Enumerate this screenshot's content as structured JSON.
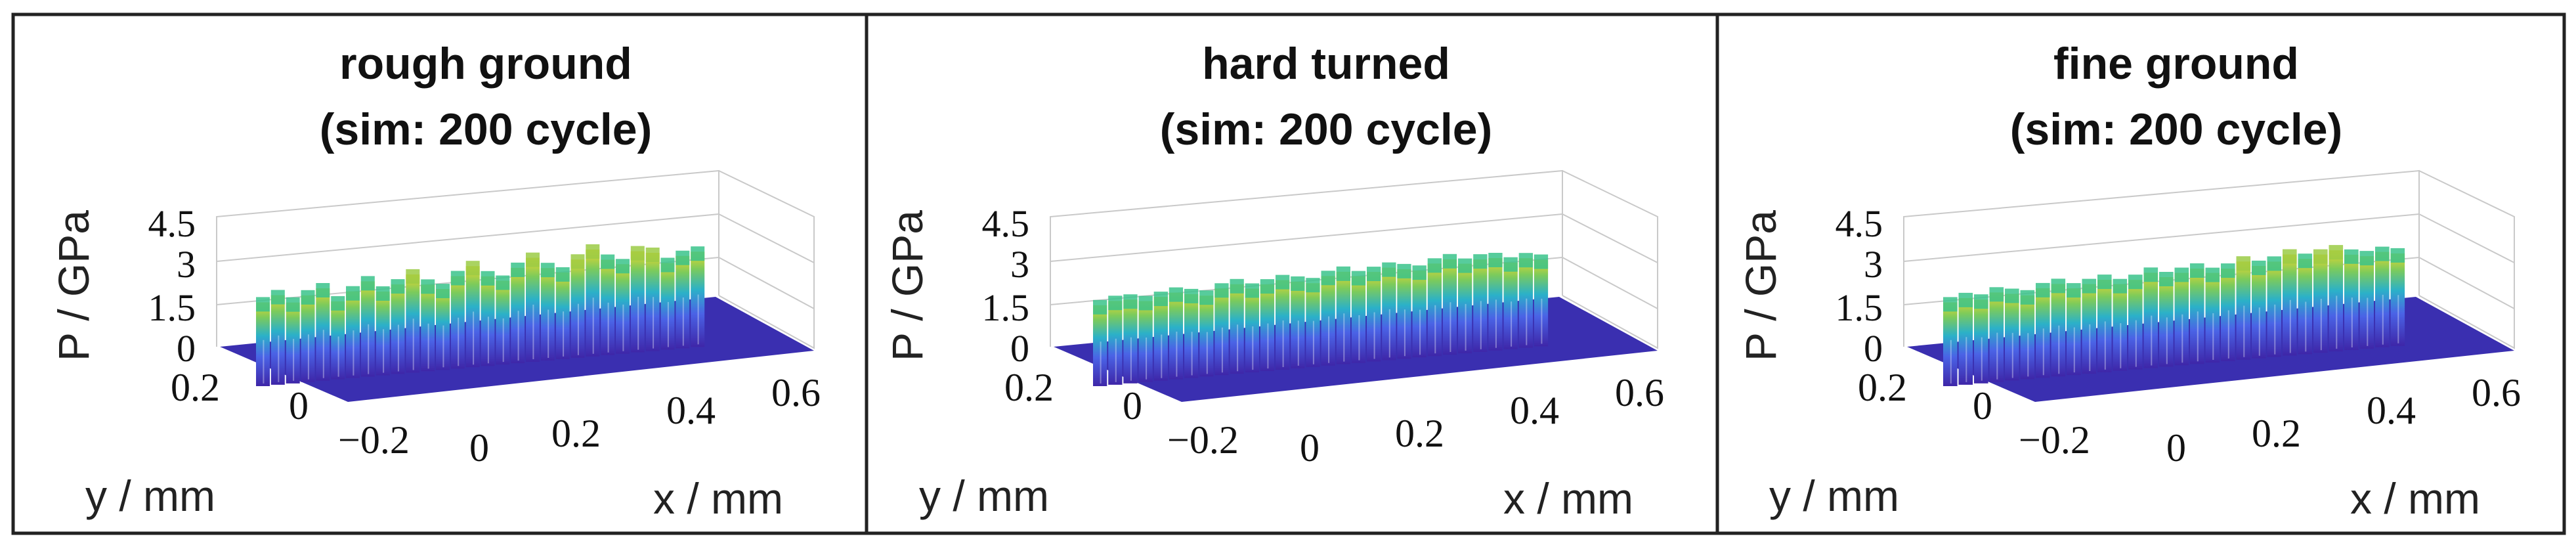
{
  "chart_data": [
    {
      "type": "surface3d",
      "title_line1": "rough ground",
      "title_line2": "(sim: 200 cycle)",
      "zlabel": "P / GPa",
      "ylabel": "y / mm",
      "xlabel": "x / mm",
      "zticks": [
        "0",
        "1.5",
        "3",
        "4.5"
      ],
      "yticks": [
        "0.2",
        "0",
        "−0.2"
      ],
      "xticks": [
        "0",
        "0.2",
        "0.4",
        "0.6"
      ],
      "zlim": [
        0,
        4.5
      ],
      "ridge_heights": [
        2.9,
        3.1,
        2.8,
        3.0,
        3.2,
        2.7,
        3.0,
        3.3,
        2.9,
        3.1,
        3.4,
        3.0,
        2.8,
        3.2,
        3.5,
        3.1,
        2.9,
        3.3,
        3.6,
        3.2,
        3.0,
        3.4,
        3.7,
        3.3,
        3.1,
        3.5,
        3.4,
        3.0,
        3.2,
        3.3
      ]
    },
    {
      "type": "surface3d",
      "title_line1": "hard turned",
      "title_line2": "(sim: 200 cycle)",
      "zlabel": "P / GPa",
      "ylabel": "y / mm",
      "xlabel": "x / mm",
      "zticks": [
        "0",
        "1.5",
        "3",
        "4.5"
      ],
      "yticks": [
        "0.2",
        "0",
        "−0.2"
      ],
      "xticks": [
        "0",
        "0.2",
        "0.4",
        "0.6"
      ],
      "zlim": [
        0,
        4.5
      ],
      "ridge_heights": [
        2.8,
        2.9,
        2.9,
        2.8,
        2.9,
        3.0,
        2.9,
        2.8,
        3.0,
        3.1,
        2.9,
        3.0,
        3.1,
        3.0,
        2.9,
        3.1,
        3.2,
        3.0,
        3.1,
        3.2,
        3.1,
        3.0,
        3.2,
        3.3,
        3.1,
        3.2,
        3.2,
        3.0,
        3.1,
        3.0
      ]
    },
    {
      "type": "surface3d",
      "title_line1": "fine ground",
      "title_line2": "(sim: 200 cycle)",
      "zlabel": "P / GPa",
      "ylabel": "y / mm",
      "xlabel": "x / mm",
      "zticks": [
        "0",
        "1.5",
        "3",
        "4.5"
      ],
      "yticks": [
        "0.2",
        "0",
        "−0.2"
      ],
      "xticks": [
        "0",
        "0.2",
        "0.4",
        "0.6"
      ],
      "zlim": [
        0,
        4.5
      ],
      "ridge_heights": [
        2.9,
        3.0,
        2.9,
        3.1,
        3.0,
        2.9,
        3.1,
        3.2,
        3.0,
        3.1,
        3.2,
        3.0,
        3.1,
        3.3,
        3.1,
        3.2,
        3.3,
        3.1,
        3.2,
        3.4,
        3.2,
        3.3,
        3.5,
        3.3,
        3.4,
        3.5,
        3.3,
        3.2,
        3.3,
        3.2
      ]
    }
  ]
}
